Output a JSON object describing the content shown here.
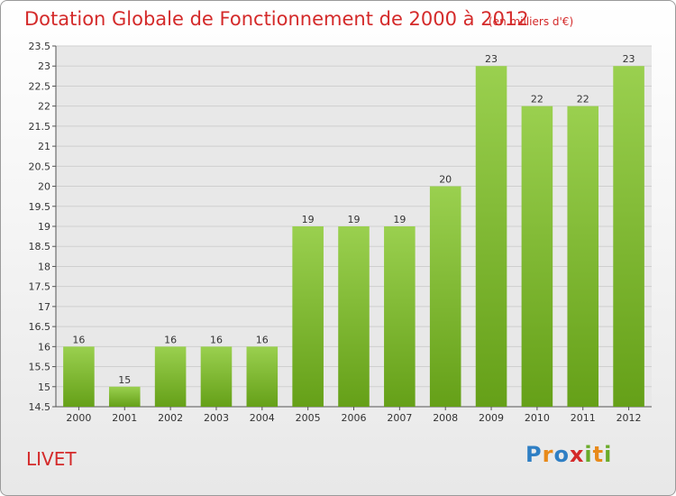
{
  "title": "Dotation Globale de Fonctionnement de 2000 à 2012",
  "subtitle": "(en milliers d'€)",
  "commune": "LIVET",
  "logo": {
    "text": "Proxiti",
    "colors": [
      "#2f7fc4",
      "#e88a1a",
      "#d42a2a",
      "#6aab2a"
    ]
  },
  "colors": {
    "bar_top": "#9ad04f",
    "bar_bottom": "#65a018",
    "title": "#d42a2a",
    "grid": "#cfcfcf",
    "plot_bg": "#e8e8e8"
  },
  "chart_data": {
    "type": "bar",
    "categories": [
      "2000",
      "2001",
      "2002",
      "2003",
      "2004",
      "2005",
      "2006",
      "2007",
      "2008",
      "2009",
      "2010",
      "2011",
      "2012"
    ],
    "values": [
      16,
      15,
      16,
      16,
      16,
      19,
      19,
      19,
      20,
      23,
      22,
      22,
      23
    ],
    "data_labels": [
      "16",
      "15",
      "16",
      "16",
      "16",
      "19",
      "19",
      "19",
      "20",
      "23",
      "22",
      "22",
      "23"
    ],
    "title": "Dotation Globale de Fonctionnement de 2000 à 2012",
    "subtitle": "(en milliers d'€)",
    "xlabel": "",
    "ylabel": "",
    "ylim": [
      14.5,
      23.5
    ],
    "yticks": [
      "14.5",
      "15",
      "15.5",
      "16",
      "16.5",
      "17",
      "17.5",
      "18",
      "18.5",
      "19",
      "19.5",
      "20",
      "20.5",
      "21",
      "21.5",
      "22",
      "22.5",
      "23",
      "23.5"
    ],
    "grid": true
  }
}
